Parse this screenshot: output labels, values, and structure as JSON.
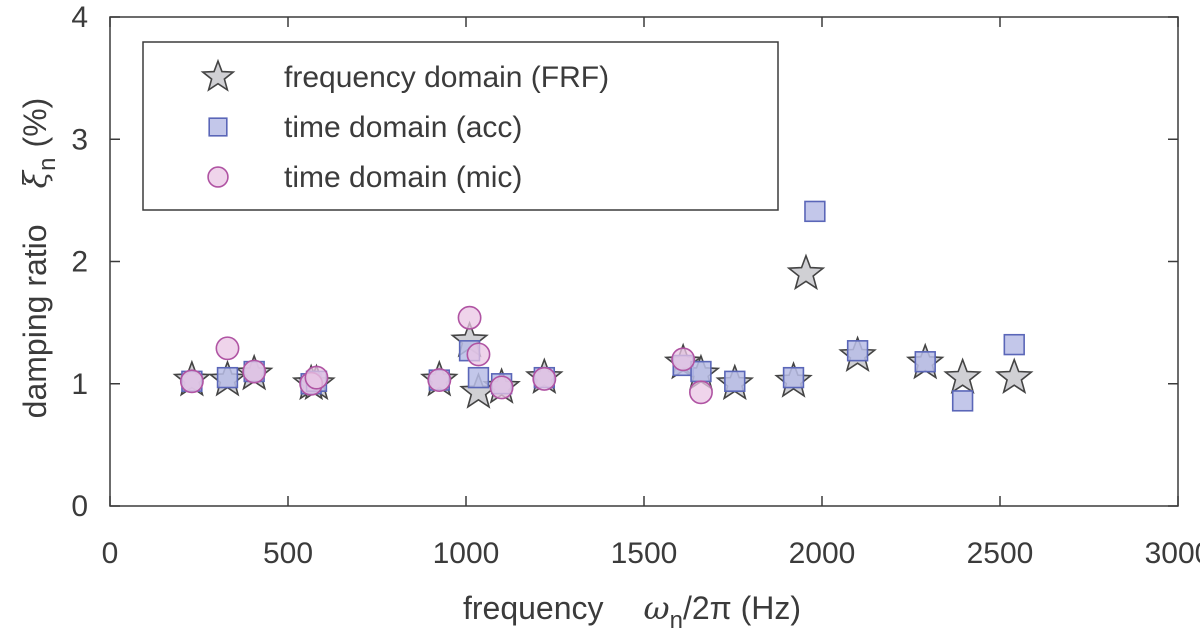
{
  "chart_data": {
    "type": "scatter",
    "xlabel": {
      "prefix": "frequency",
      "symbol": "ω",
      "subscript": "n",
      "suffix": "/2π (Hz)"
    },
    "ylabel": {
      "prefix": "damping ratio",
      "symbol": "ξ",
      "subscript": "n",
      "suffix": "(%)"
    },
    "xlim": [
      0,
      3000
    ],
    "ylim": [
      0,
      4
    ],
    "xticks": [
      0,
      500,
      1000,
      1500,
      2000,
      2500,
      3000
    ],
    "yticks": [
      0,
      1,
      2,
      3,
      4
    ],
    "grid": false,
    "legend_position": "top-left",
    "series": [
      {
        "name": "frequency domain (FRF)",
        "marker": "star",
        "color": "#c8c8cc",
        "edge": "#444444",
        "points": [
          [
            230,
            1.03
          ],
          [
            330,
            1.03
          ],
          [
            405,
            1.08
          ],
          [
            565,
            1.0
          ],
          [
            580,
            1.0
          ],
          [
            925,
            1.03
          ],
          [
            1010,
            1.35
          ],
          [
            1035,
            0.93
          ],
          [
            1100,
            0.97
          ],
          [
            1220,
            1.05
          ],
          [
            1610,
            1.17
          ],
          [
            1660,
            1.08
          ],
          [
            1755,
            1.0
          ],
          [
            1920,
            1.02
          ],
          [
            1955,
            1.9
          ],
          [
            2100,
            1.23
          ],
          [
            2290,
            1.17
          ],
          [
            2395,
            1.05
          ],
          [
            2540,
            1.05
          ]
        ]
      },
      {
        "name": "time domain (acc)",
        "marker": "square",
        "color": "#b9bde6",
        "edge": "#5a66b8",
        "points": [
          [
            230,
            1.02
          ],
          [
            330,
            1.05
          ],
          [
            405,
            1.1
          ],
          [
            565,
            1.0
          ],
          [
            580,
            1.02
          ],
          [
            925,
            1.03
          ],
          [
            1010,
            1.27
          ],
          [
            1035,
            1.05
          ],
          [
            1100,
            1.0
          ],
          [
            1220,
            1.05
          ],
          [
            1610,
            1.15
          ],
          [
            1660,
            1.1
          ],
          [
            1755,
            1.02
          ],
          [
            1920,
            1.05
          ],
          [
            1980,
            2.41
          ],
          [
            2100,
            1.27
          ],
          [
            2290,
            1.18
          ],
          [
            2395,
            0.86
          ],
          [
            2540,
            1.32
          ]
        ]
      },
      {
        "name": "time domain (mic)",
        "marker": "circle",
        "color": "#e9c6e4",
        "edge": "#b054a3",
        "points": [
          [
            230,
            1.02
          ],
          [
            330,
            1.29
          ],
          [
            405,
            1.1
          ],
          [
            565,
            1.0
          ],
          [
            580,
            1.05
          ],
          [
            925,
            1.03
          ],
          [
            1010,
            1.54
          ],
          [
            1035,
            1.24
          ],
          [
            1100,
            0.97
          ],
          [
            1220,
            1.04
          ],
          [
            1610,
            1.2
          ],
          [
            1660,
            0.93
          ]
        ]
      }
    ]
  }
}
